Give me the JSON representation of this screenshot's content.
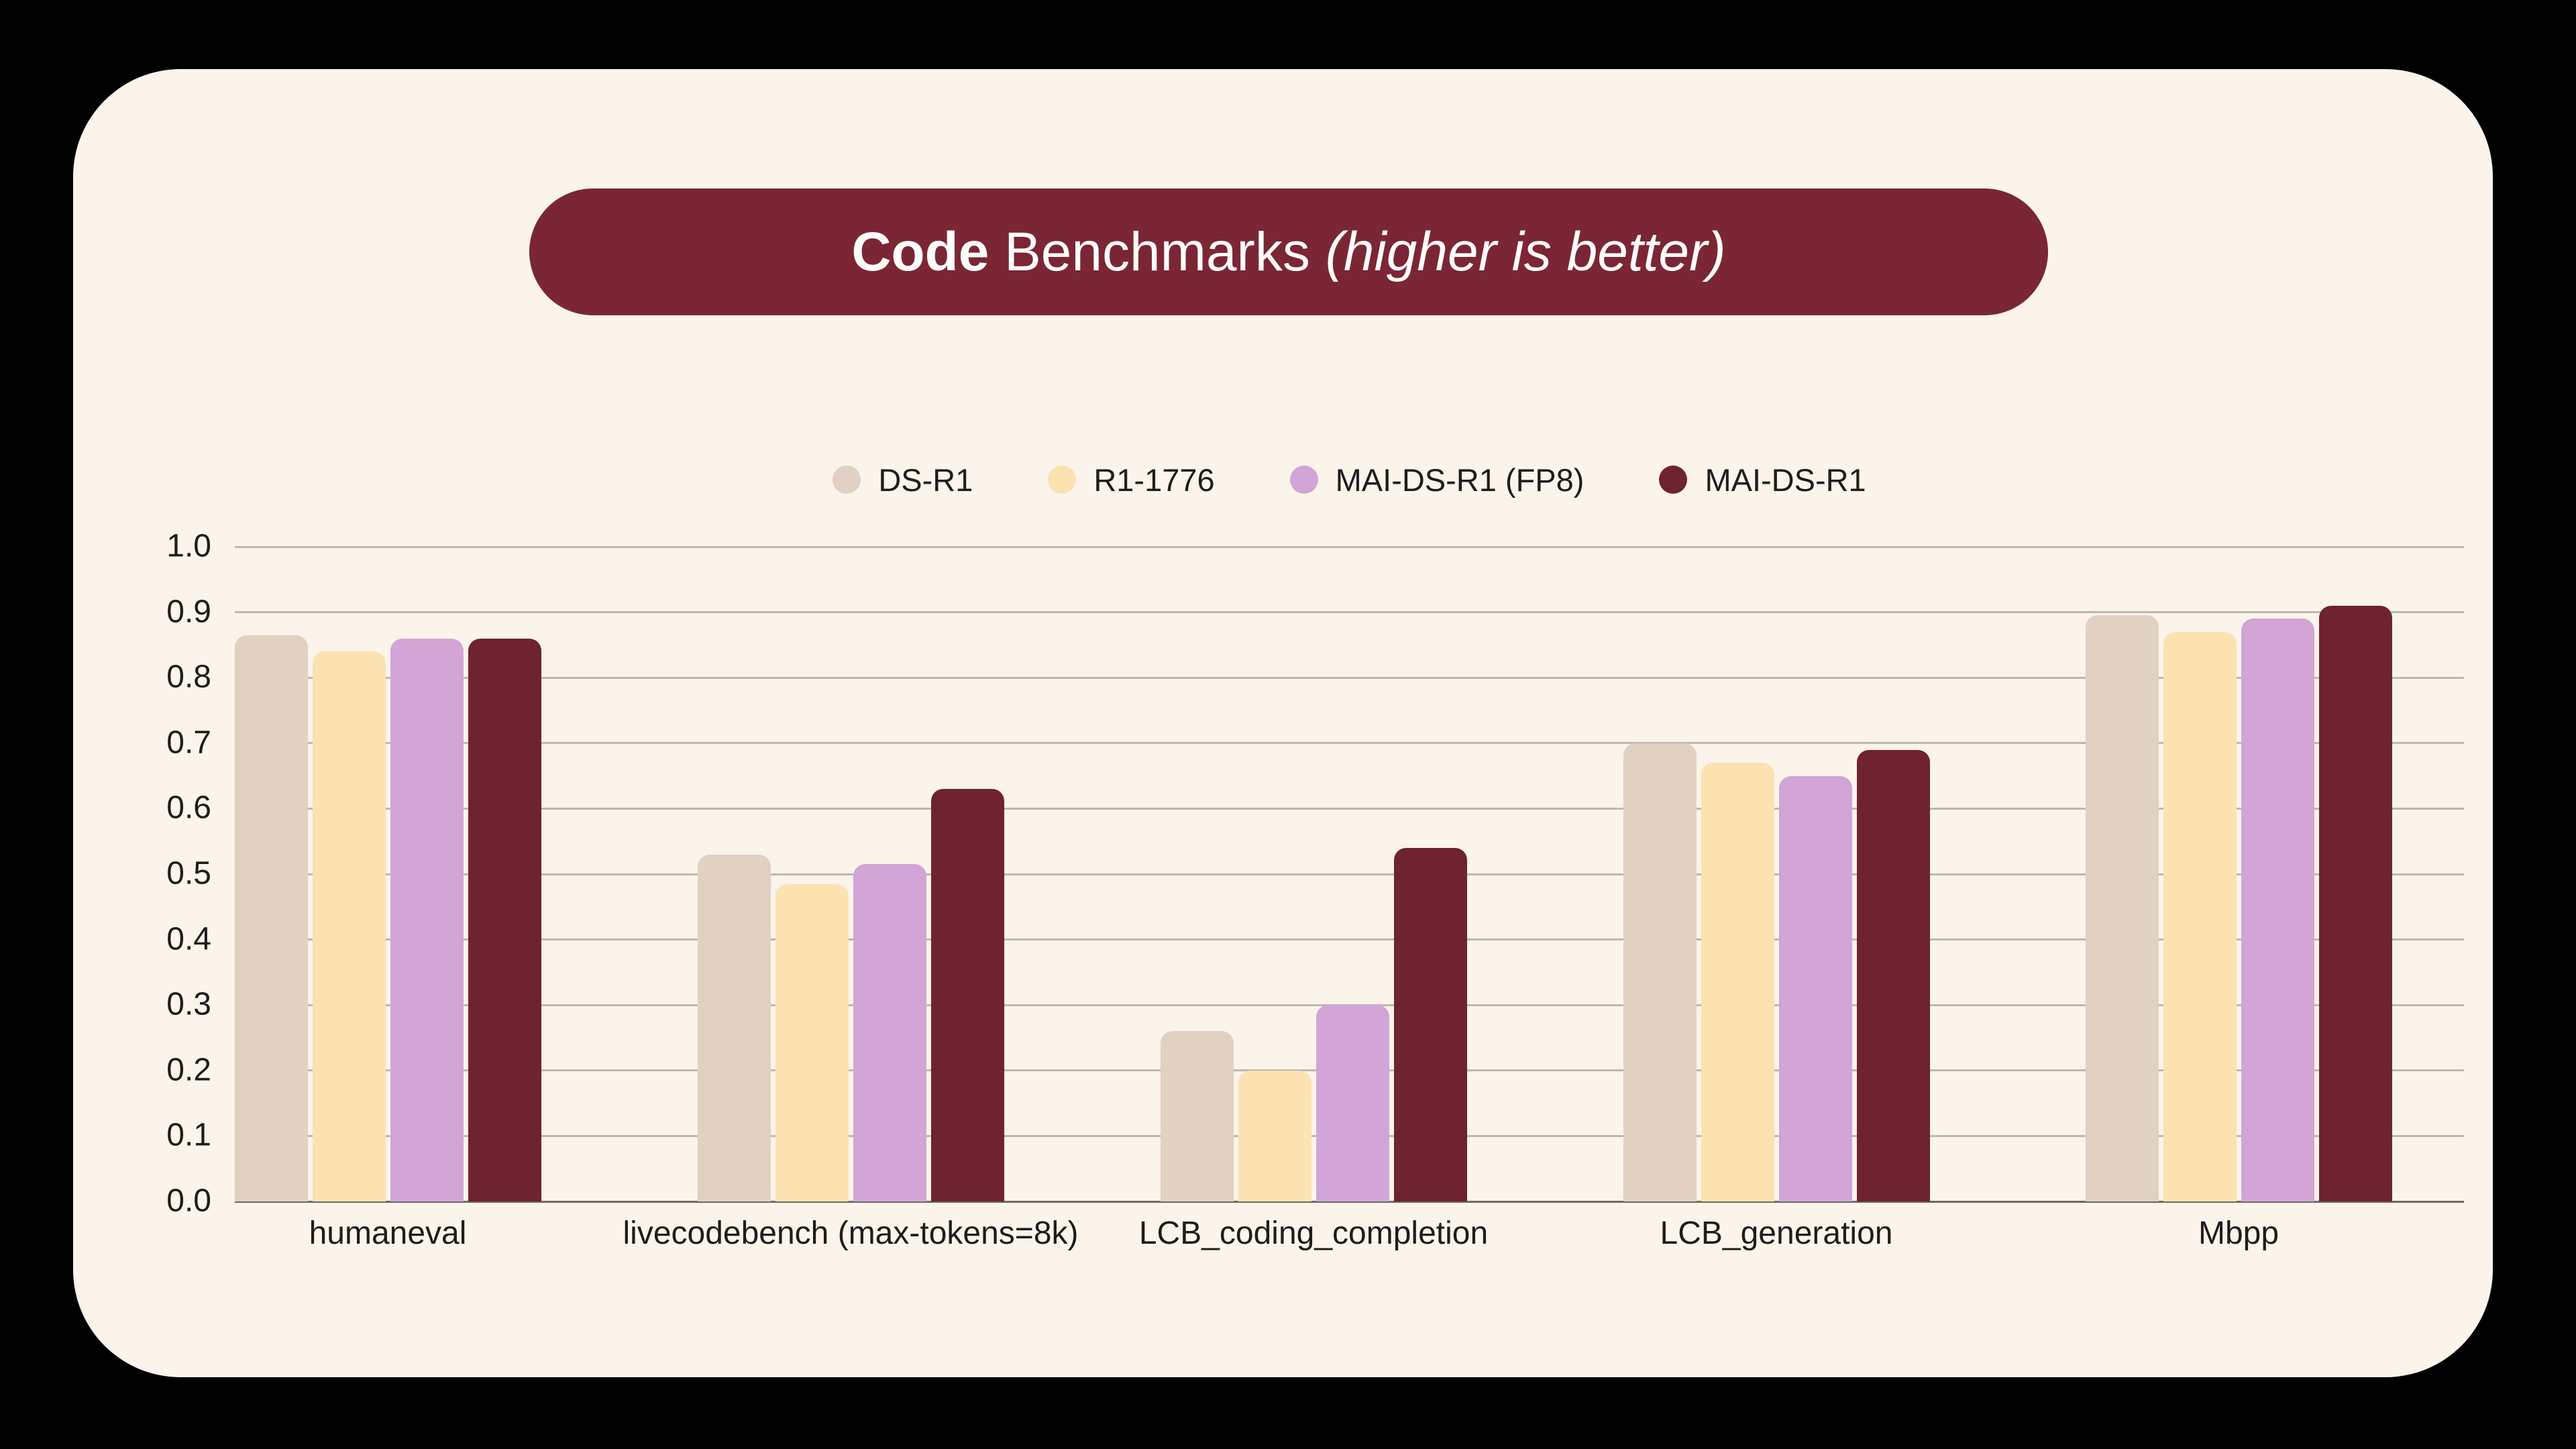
{
  "title": {
    "bold": "Code",
    "regular": " Benchmarks ",
    "italic": "(higher is better)",
    "full": "Code Benchmarks (higher is better)"
  },
  "colors": {
    "page_background": "#000000",
    "card_background": "#faf4ea",
    "title_banner": "#7b2635",
    "title_text": "#fdfdfa",
    "axis_text": "#1d1d1d",
    "gridline": "#bdb9b0",
    "baseline": "#6a6a64"
  },
  "chart_data": {
    "type": "bar",
    "title": "Code Benchmarks (higher is better)",
    "xlabel": "",
    "ylabel": "",
    "ylim": [
      0.0,
      1.0
    ],
    "ytick_step": 0.1,
    "yticks": [
      "0.0",
      "0.1",
      "0.2",
      "0.3",
      "0.4",
      "0.5",
      "0.6",
      "0.7",
      "0.8",
      "0.9",
      "1.0"
    ],
    "grid": true,
    "legend_position": "top-center",
    "categories": [
      "humaneval",
      "livecodebench (max-tokens=8k)",
      "LCB_coding_completion",
      "LCB_generation",
      "Mbpp"
    ],
    "series": [
      {
        "name": "DS-R1",
        "color": "#e0d1c3",
        "values": [
          0.865,
          0.53,
          0.26,
          0.7,
          0.895
        ]
      },
      {
        "name": "R1-1776",
        "color": "#fce2b0",
        "values": [
          0.84,
          0.485,
          0.2,
          0.67,
          0.87
        ]
      },
      {
        "name": "MAI-DS-R1 (FP8)",
        "color": "#d3a4d6",
        "values": [
          0.86,
          0.515,
          0.3,
          0.65,
          0.89
        ]
      },
      {
        "name": "MAI-DS-R1",
        "color": "#6f2231",
        "values": [
          0.86,
          0.63,
          0.54,
          0.69,
          0.91
        ]
      }
    ]
  }
}
